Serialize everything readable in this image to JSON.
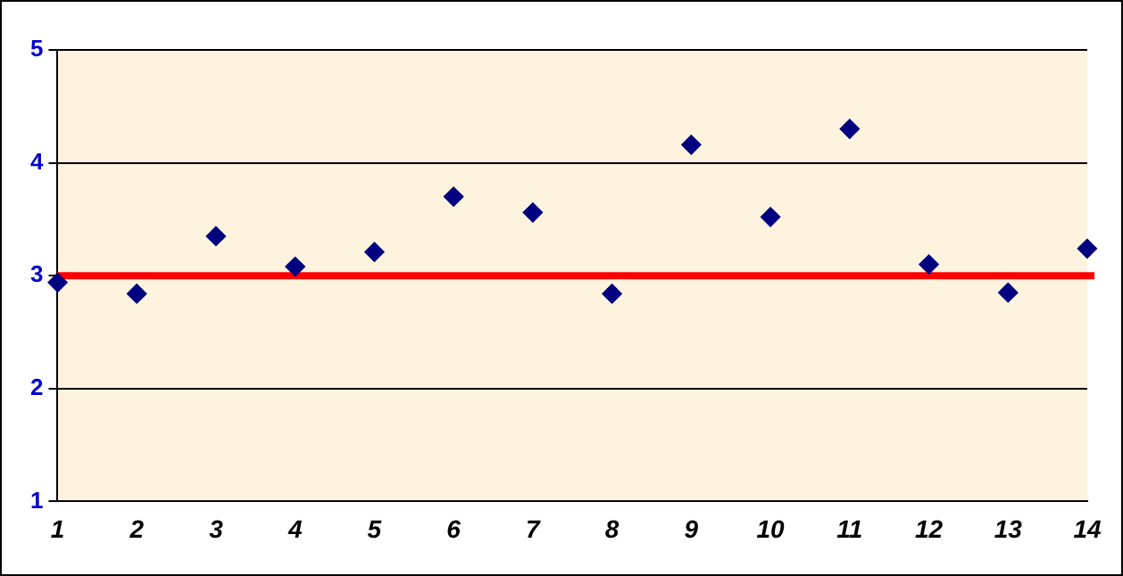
{
  "chart_data": {
    "type": "scatter",
    "x": [
      1,
      2,
      3,
      4,
      5,
      6,
      7,
      8,
      9,
      10,
      11,
      12,
      13,
      14
    ],
    "series": [
      {
        "color": "#000080",
        "values": [
          2.94,
          2.84,
          3.35,
          3.08,
          3.21,
          3.7,
          3.56,
          2.84,
          4.16,
          3.52,
          4.3,
          3.1,
          2.85,
          3.24
        ]
      }
    ],
    "xlim": [
      1,
      14
    ],
    "xticks": [
      1,
      2,
      3,
      4,
      5,
      6,
      7,
      8,
      9,
      10,
      11,
      12,
      13,
      14
    ],
    "ylim": [
      1,
      5
    ],
    "yticks": [
      1,
      2,
      3,
      4,
      5
    ],
    "ref_lines": [
      {
        "axis": "y",
        "value": 3,
        "color": "#ff0000"
      }
    ],
    "grid": "y",
    "marker": "diamond",
    "legend": false
  }
}
